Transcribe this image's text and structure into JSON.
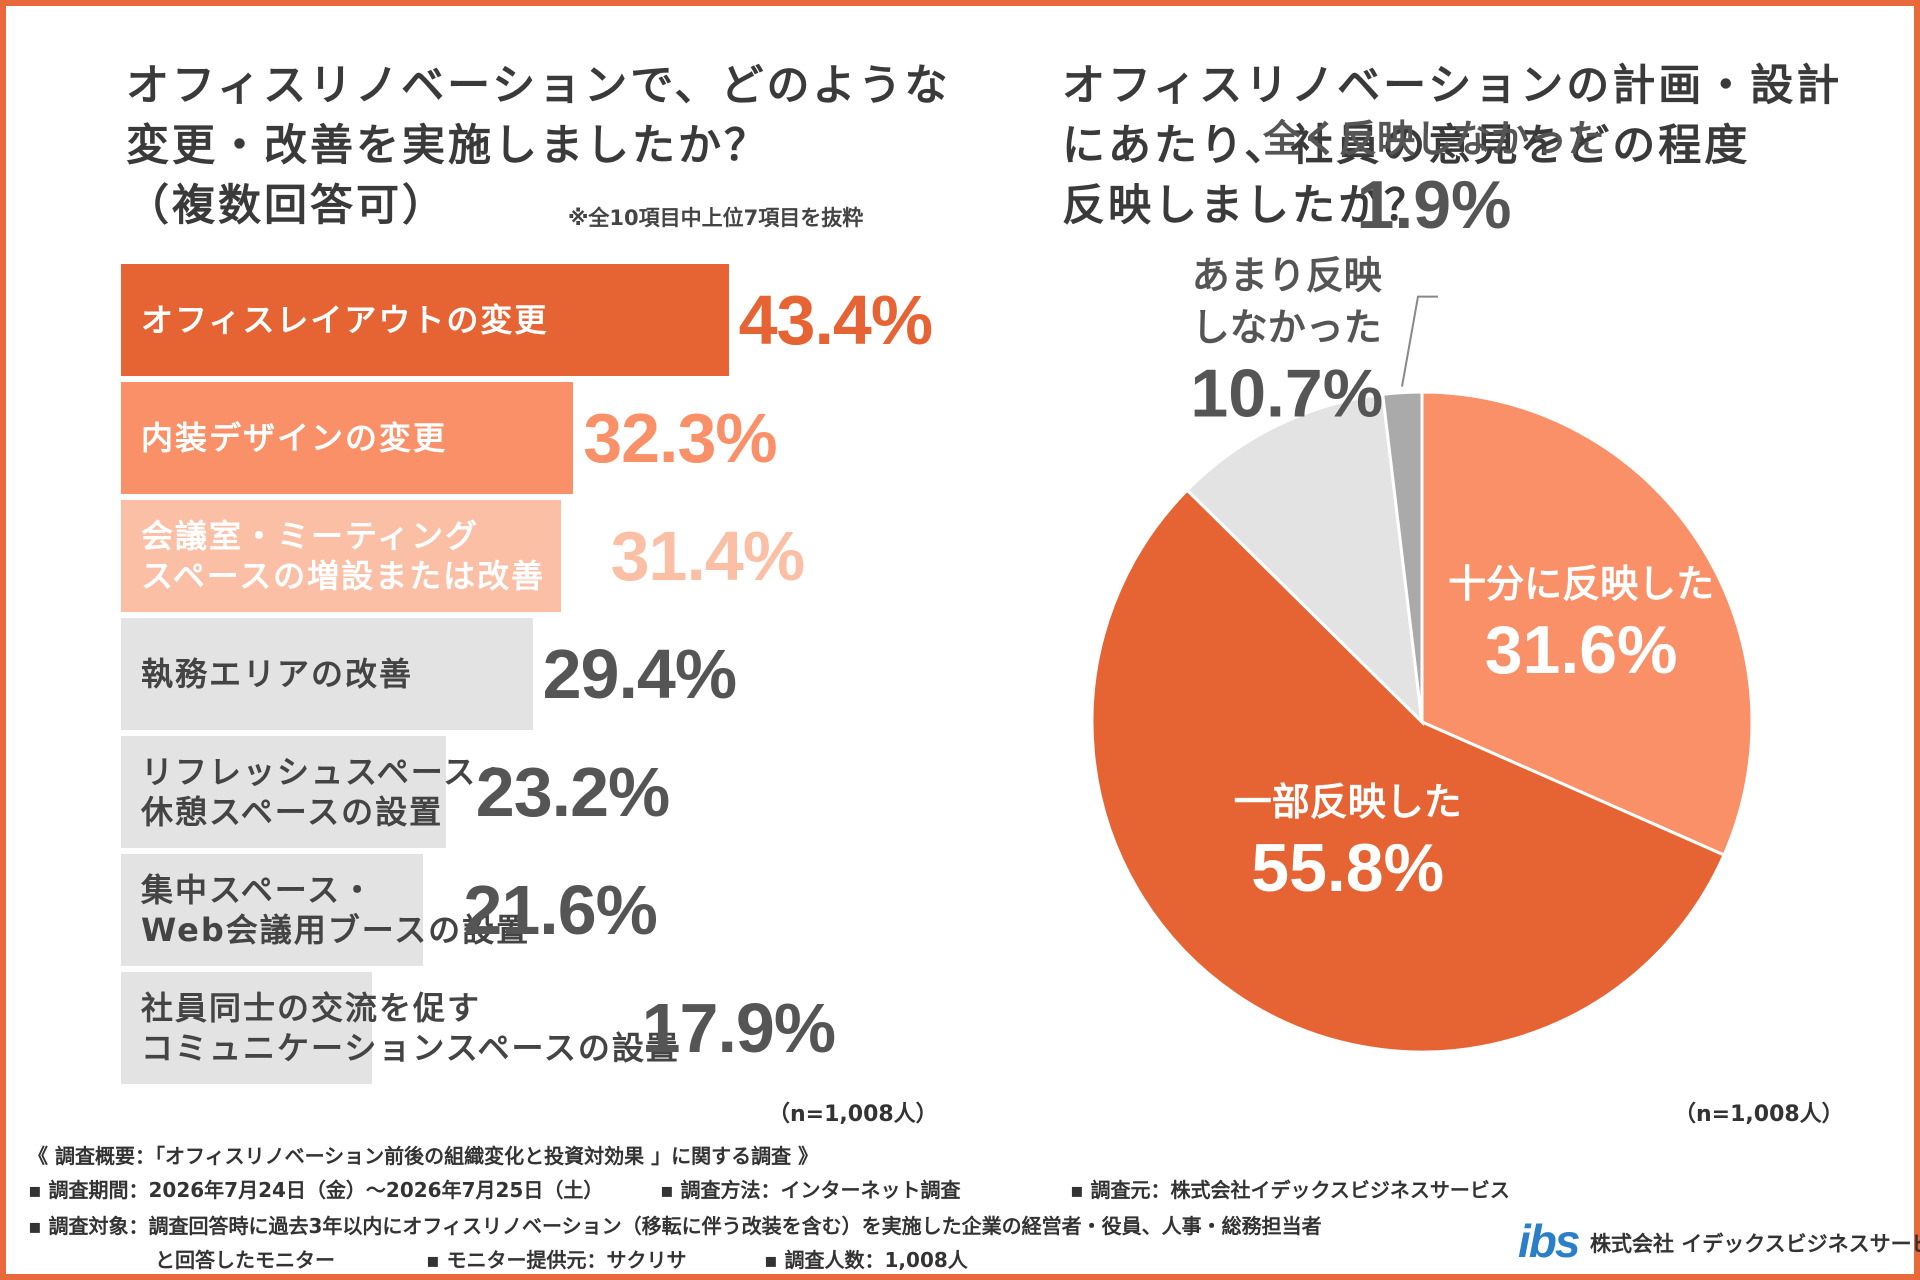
{
  "q1": {
    "title_lines": [
      "オフィスリノベーションで、どのような",
      "変更・改善を実施しましたか？",
      "（複数回答可）"
    ],
    "note": "※全10項目中上位7項目を抜粋",
    "n_label": "（n=1,008人）"
  },
  "q2": {
    "title_lines": [
      "オフィスリノベーションの計画・設計",
      "にあたり、社員の意見をどの程度",
      "反映しましたか？"
    ],
    "n_label": "（n=1,008人）"
  },
  "chart_data": [
    {
      "type": "bar",
      "orientation": "horizontal",
      "categories": [
        [
          "オフィスレイアウトの変更"
        ],
        [
          "内装デザインの変更"
        ],
        [
          "会議室・ミーティング",
          "スペースの増設または改善"
        ],
        [
          "執務エリアの改善"
        ],
        [
          "リフレッシュスペース・",
          "休憩スペースの設置"
        ],
        [
          "集中スペース・",
          "Web会議用ブースの設置"
        ],
        [
          "社員同士の交流を促す",
          "コミュニケーションスペースの設置"
        ]
      ],
      "values": [
        43.4,
        32.3,
        31.4,
        29.4,
        23.2,
        21.6,
        17.9
      ],
      "value_labels": [
        "43.4%",
        "32.3%",
        "31.4%",
        "29.4%",
        "23.2%",
        "21.6%",
        "17.9%"
      ],
      "bar_colors": [
        "#e66433",
        "#f99068",
        "#fbbfa6",
        "#e3e3e3",
        "#e3e3e3",
        "#e3e3e3",
        "#e3e3e3"
      ],
      "label_colors": [
        "#ffffff",
        "#ffffff",
        "#ffffff",
        "#444444",
        "#444444",
        "#444444",
        "#444444"
      ],
      "value_colors": [
        "#e66433",
        "#f99068",
        "#fbbfa6",
        "#555555",
        "#555555",
        "#555555",
        "#555555"
      ],
      "unit": "%"
    },
    {
      "type": "pie",
      "slices": [
        {
          "label": [
            "十分に反映した"
          ],
          "value": 31.6,
          "value_label": "31.6%",
          "color": "#f99068",
          "text_color": "#ffffff"
        },
        {
          "label": [
            "一部反映した"
          ],
          "value": 55.8,
          "value_label": "55.8%",
          "color": "#e66433",
          "text_color": "#ffffff"
        },
        {
          "label": [
            "あまり反映",
            "しなかった"
          ],
          "value": 10.7,
          "value_label": "10.7%",
          "color": "#e3e3e3",
          "text_color": "#555555"
        },
        {
          "label": [
            "全く反映しなかった"
          ],
          "value": 1.9,
          "value_label": "1.9%",
          "color": "#aaaaaa",
          "text_color": "#555555"
        }
      ],
      "start": "12 o'clock",
      "direction": "clockwise"
    }
  ],
  "footer": {
    "overview": "《 調査概要：「オフィスリノベーション前後の組織変化と投資対効果 」に関する調査 》",
    "period": "▪ 調査期間：2026年7月24日（金）～2026年7月25日（土）",
    "method": "▪ 調査方法：インターネット調査",
    "source": "▪ 調査元：株式会社イデックスビジネスサービス",
    "target_1": "▪ 調査対象：調査回答時に過去3年以内にオフィスリノベーション（移転に伴う改装を含む）を実施した企業の経営者・役員、人事・総務担当者",
    "target_2": "と回答したモニター",
    "provider": "▪ モニター提供元：サクリサ",
    "count": "▪ 調査人数：1,008人"
  },
  "logo": {
    "mark": "ibs",
    "company": "株式会社 イデックスビジネスサービス"
  },
  "colors": {
    "border": "#e86a3a",
    "accent": "#e66433",
    "logo": "#2a7fc8"
  }
}
